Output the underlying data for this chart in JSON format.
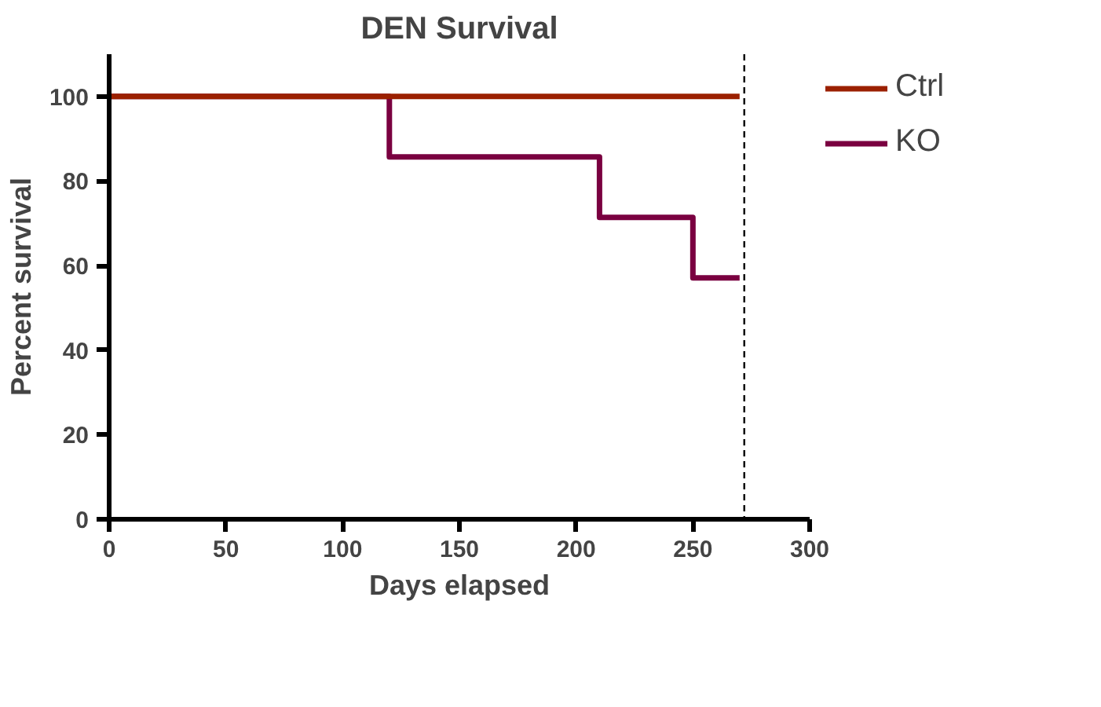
{
  "chart_data": {
    "type": "step",
    "title": "DEN Survival",
    "xlabel": "Days elapsed",
    "ylabel": "Percent survival",
    "series": [
      {
        "name": "Ctrl",
        "color": "#9b2000",
        "x": [
          0,
          270
        ],
        "values": [
          100,
          100
        ]
      },
      {
        "name": "KO",
        "color": "#7a0040",
        "x": [
          0,
          120,
          210,
          250,
          270
        ],
        "values": [
          100,
          85.7,
          71.4,
          57.1,
          57.1
        ]
      }
    ],
    "xlim": [
      0,
      300
    ],
    "xticks": [
      0,
      50,
      100,
      150,
      200,
      250,
      300
    ],
    "ylim": [
      0,
      110
    ],
    "yticks": [
      0,
      20,
      40,
      60,
      80,
      100
    ],
    "ref_lines": [
      {
        "axis": "x",
        "value": 272,
        "label": null,
        "color": "#000000",
        "line_style": "dashed"
      }
    ],
    "grid": false,
    "legend": "right",
    "marker": "none",
    "line_style": "solid"
  }
}
